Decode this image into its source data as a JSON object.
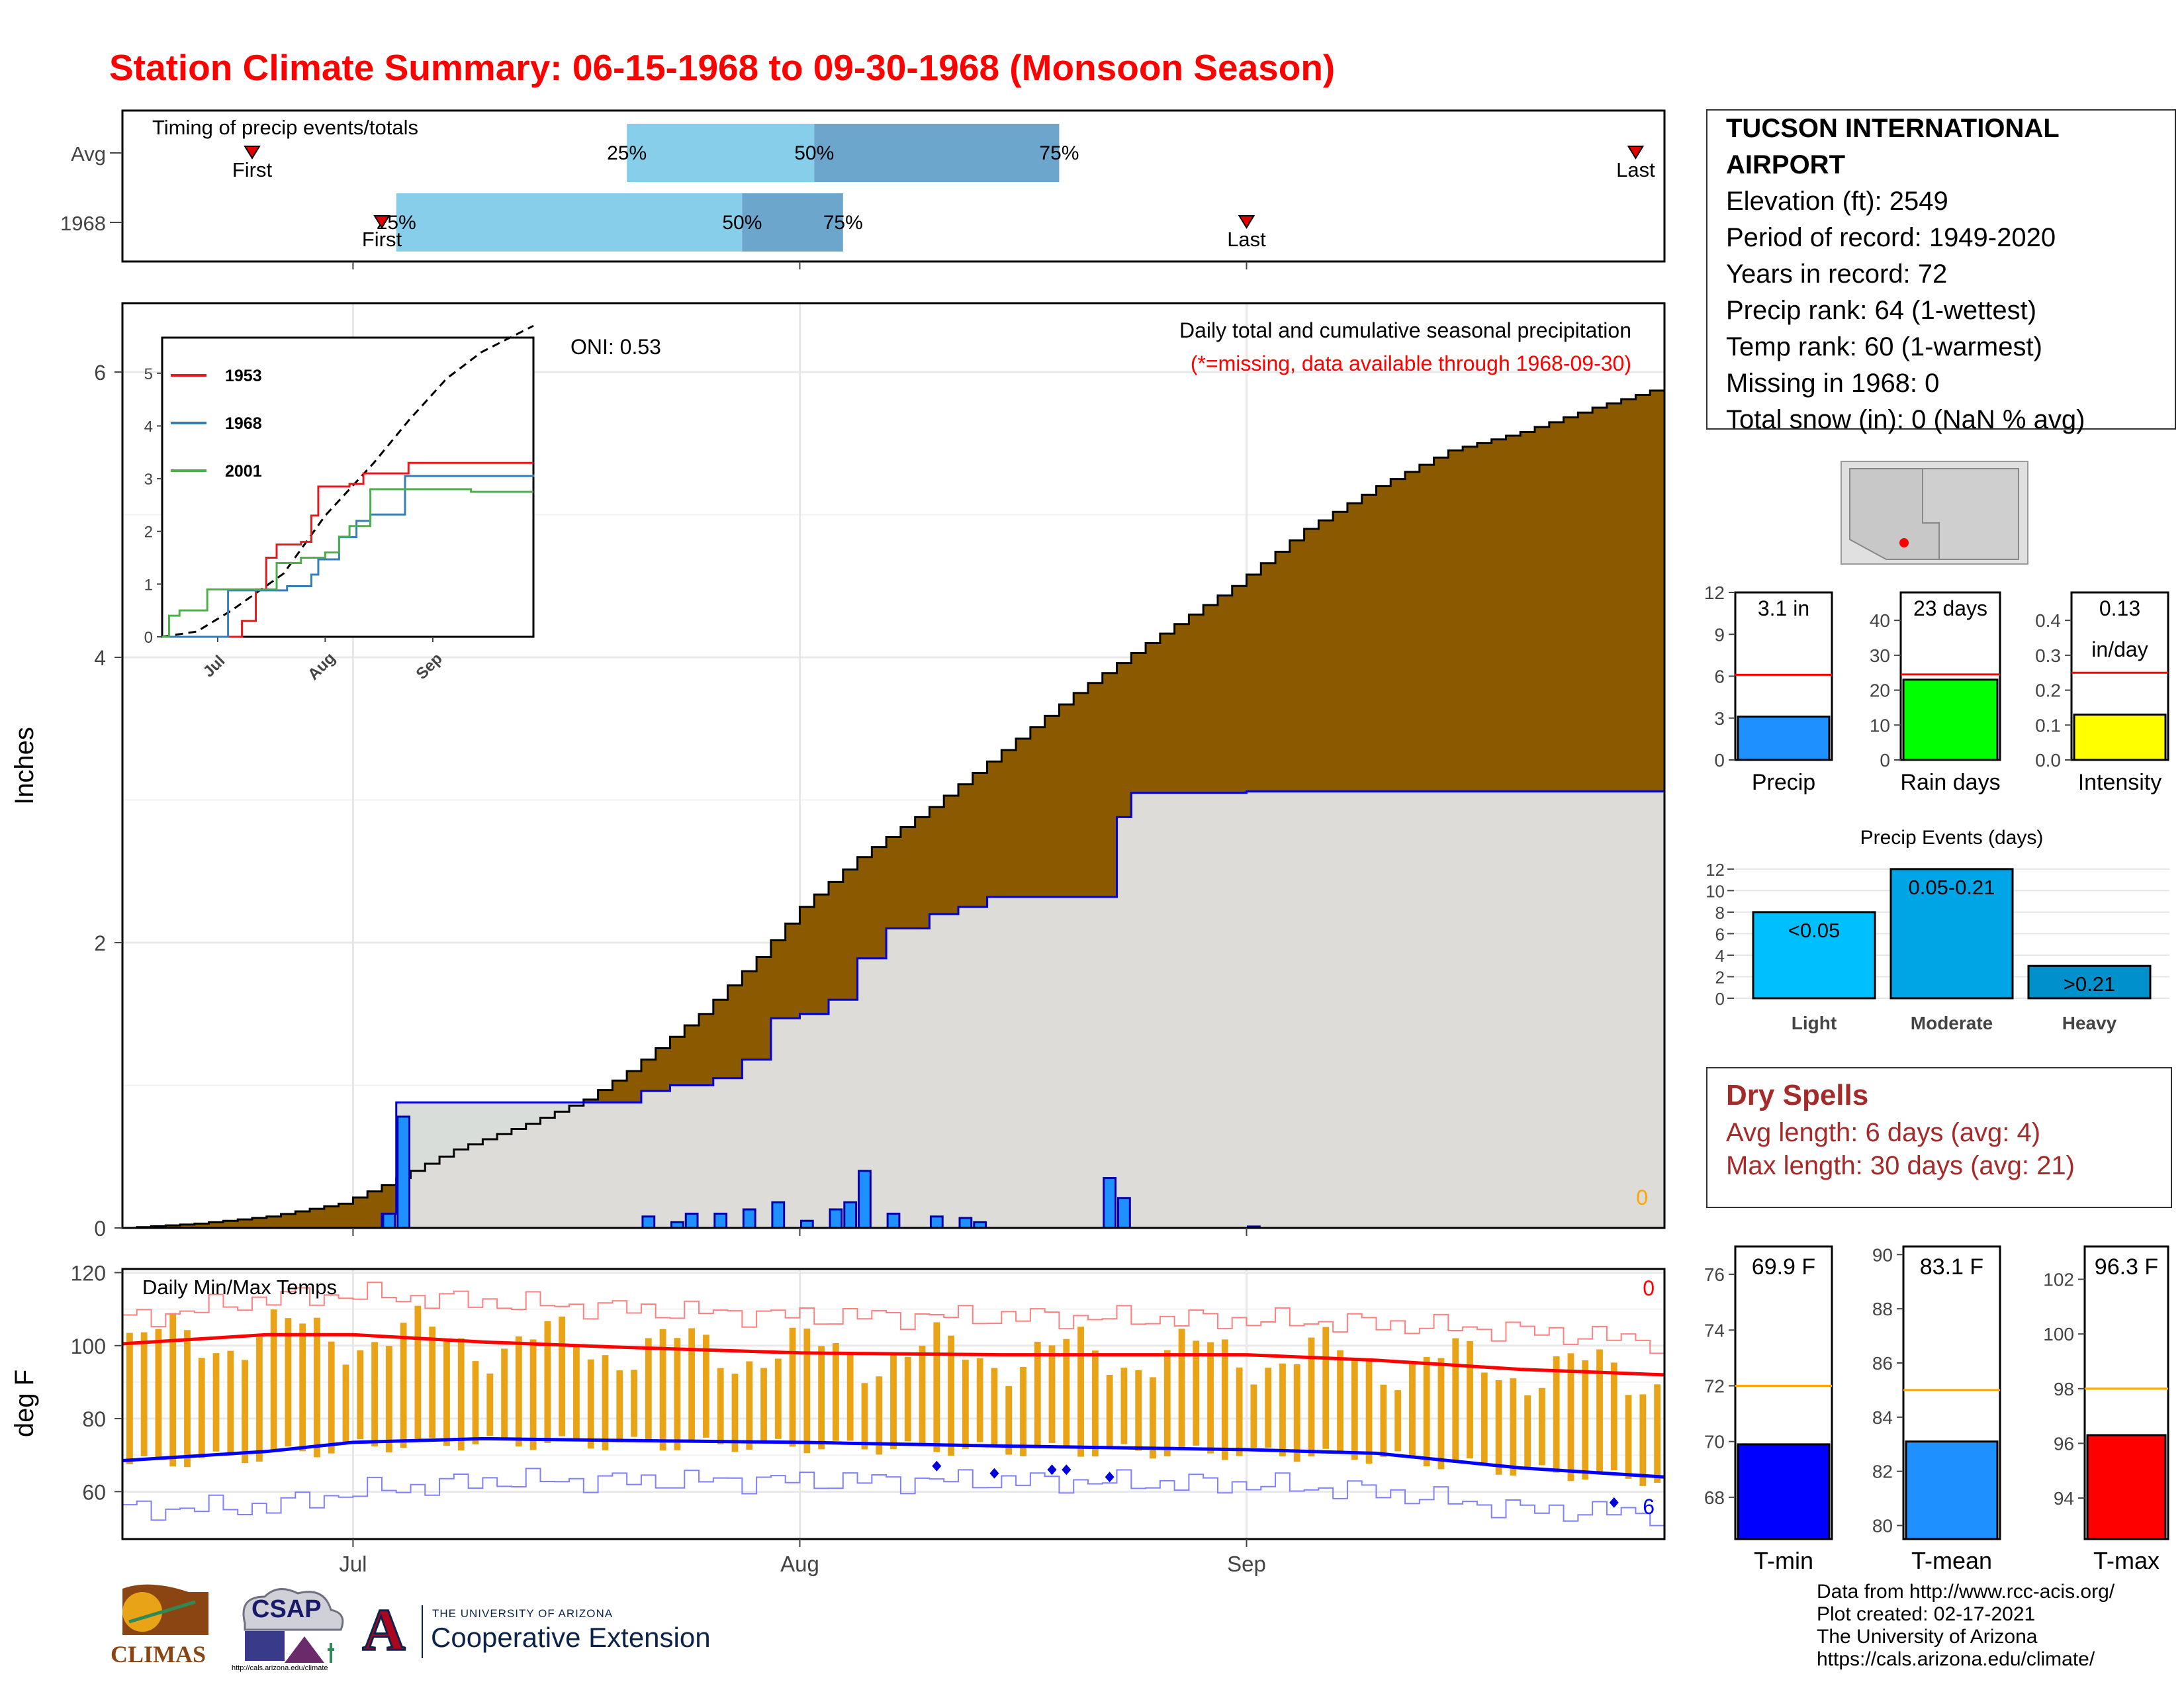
{
  "title": "Station Climate Summary: 06-15-1968 to 09-30-1968 (Monsoon Season)",
  "station": {
    "name": "TUCSON INTERNATIONAL AIRPORT",
    "lines": [
      "Elevation (ft): 2549",
      "Period of record: 1949-2020",
      "Years in record: 72",
      "Precip rank: 64 (1-wettest)",
      "Temp rank: 60 (1-warmest)",
      "Missing in 1968: 0",
      "Total snow (in): 0 (NaN % avg)"
    ]
  },
  "dry_spells": {
    "title": "Dry Spells",
    "avg": "Avg length: 6 days (avg: 4)",
    "max": "Max length: 30 days (avg: 21)"
  },
  "credits": [
    "Data from http://www.rcc-acis.org/",
    "Plot created: 02-17-2021",
    "The University of Arizona",
    "https://cals.arizona.edu/climate/"
  ],
  "logos": {
    "climas": "CLIMAS",
    "csap": "CSAP",
    "csap_url": "http://cals.arizona.edu/climate",
    "ua_top": "THE UNIVERSITY OF ARIZONA",
    "ua_bottom": "Cooperative Extension",
    "ua_letter": "A"
  },
  "colors": {
    "title": "#ff0000",
    "cumulative_avg": "#8b5a00",
    "cumulative_above": "#008000",
    "below_avg_fill": "#e0e0e0",
    "daily_bar": "#1e90ff",
    "timing_light": "#87ceeb",
    "timing_dark": "#6ca6cd",
    "tmax": "#ff0000",
    "tmin": "#0000ff",
    "range_bar": "#e8a317",
    "dry_spell": "#a52a2a"
  },
  "chart_data": [
    {
      "id": "timing",
      "type": "bar",
      "title": "Timing of precip events/totals",
      "rows": [
        {
          "label": "Avg",
          "first": "06-24",
          "q25": "07-20",
          "q50": "08-02",
          "q75": "08-19",
          "last": "09-28"
        },
        {
          "label": "1968",
          "first": "07-03",
          "q25": "07-04",
          "q50": "07-28",
          "q75": "08-04",
          "last": "09-01"
        }
      ],
      "quantile_labels": [
        "25%",
        "50%",
        "75%"
      ],
      "marker_labels": [
        "First",
        "Last"
      ]
    },
    {
      "id": "cumulative",
      "type": "area",
      "title": "Daily total and cumulative seasonal precipitation",
      "subtitle": "(*=missing, data available through 1968-09-30)",
      "ylabel": "Inches",
      "ylim": [
        0,
        6.5
      ],
      "yticks": [
        0,
        2,
        4,
        6
      ],
      "xticks": [
        "Jul",
        "Aug",
        "Sep"
      ],
      "oni": "ONI: 0.53",
      "missing_count": "0",
      "avg_cumulative": [
        [
          "06-15",
          0.0
        ],
        [
          "06-20",
          0.03
        ],
        [
          "06-25",
          0.08
        ],
        [
          "06-30",
          0.17
        ],
        [
          "07-03",
          0.3
        ],
        [
          "07-08",
          0.55
        ],
        [
          "07-13",
          0.73
        ],
        [
          "07-17",
          0.9
        ],
        [
          "07-20",
          1.1
        ],
        [
          "07-25",
          1.5
        ],
        [
          "07-29",
          1.9
        ],
        [
          "08-01",
          2.25
        ],
        [
          "08-05",
          2.6
        ],
        [
          "08-10",
          2.95
        ],
        [
          "08-15",
          3.35
        ],
        [
          "08-20",
          3.75
        ],
        [
          "08-25",
          4.1
        ],
        [
          "08-31",
          4.5
        ],
        [
          "09-05",
          4.9
        ],
        [
          "09-10",
          5.2
        ],
        [
          "09-15",
          5.45
        ],
        [
          "09-20",
          5.58
        ],
        [
          "09-25",
          5.75
        ],
        [
          "09-30",
          5.9
        ]
      ],
      "obs_cumulative": [
        [
          "06-15",
          0.0
        ],
        [
          "07-02",
          0.0
        ],
        [
          "07-03",
          0.1
        ],
        [
          "07-04",
          0.88
        ],
        [
          "07-20",
          0.88
        ],
        [
          "07-21",
          0.96
        ],
        [
          "07-23",
          1.0
        ],
        [
          "07-26",
          1.05
        ],
        [
          "07-28",
          1.18
        ],
        [
          "07-30",
          1.47
        ],
        [
          "08-01",
          1.5
        ],
        [
          "08-03",
          1.6
        ],
        [
          "08-05",
          1.89
        ],
        [
          "08-07",
          2.1
        ],
        [
          "08-10",
          2.2
        ],
        [
          "08-12",
          2.25
        ],
        [
          "08-14",
          2.32
        ],
        [
          "08-22",
          2.32
        ],
        [
          "08-23",
          2.88
        ],
        [
          "08-24",
          3.05
        ],
        [
          "09-01",
          3.06
        ],
        [
          "09-30",
          3.08
        ]
      ],
      "daily_bars": [
        [
          "07-03",
          0.1
        ],
        [
          "07-04",
          0.78
        ],
        [
          "07-21",
          0.08
        ],
        [
          "07-23",
          0.04
        ],
        [
          "07-24",
          0.1
        ],
        [
          "07-26",
          0.1
        ],
        [
          "07-28",
          0.13
        ],
        [
          "07-30",
          0.18
        ],
        [
          "08-01",
          0.05
        ],
        [
          "08-03",
          0.13
        ],
        [
          "08-04",
          0.18
        ],
        [
          "08-05",
          0.4
        ],
        [
          "08-07",
          0.1
        ],
        [
          "08-10",
          0.08
        ],
        [
          "08-12",
          0.07
        ],
        [
          "08-13",
          0.04
        ],
        [
          "08-22",
          0.35
        ],
        [
          "08-23",
          0.21
        ],
        [
          "09-01",
          0.01
        ]
      ]
    },
    {
      "id": "inset",
      "type": "line",
      "yticks": [
        0,
        1,
        2,
        3,
        4,
        5
      ],
      "ylim": [
        0,
        5.5
      ],
      "xticks": [
        "Jul",
        "Aug",
        "Sep"
      ],
      "series": [
        {
          "name": "1953",
          "color": "#e41a1c",
          "points": [
            [
              "06-15",
              0
            ],
            [
              "07-07",
              0
            ],
            [
              "07-08",
              0.3
            ],
            [
              "07-12",
              0.9
            ],
            [
              "07-15",
              1.5
            ],
            [
              "07-18",
              1.75
            ],
            [
              "07-25",
              1.8
            ],
            [
              "07-28",
              2.3
            ],
            [
              "07-30",
              2.85
            ],
            [
              "08-08",
              2.9
            ],
            [
              "08-12",
              3.1
            ],
            [
              "08-25",
              3.3
            ],
            [
              "09-30",
              3.3
            ]
          ]
        },
        {
          "name": "1968",
          "color": "#377eb8",
          "points": [
            [
              "06-15",
              0
            ],
            [
              "07-03",
              0
            ],
            [
              "07-04",
              0.88
            ],
            [
              "07-21",
              0.96
            ],
            [
              "07-28",
              1.18
            ],
            [
              "07-30",
              1.47
            ],
            [
              "08-05",
              1.89
            ],
            [
              "08-10",
              2.2
            ],
            [
              "08-14",
              2.32
            ],
            [
              "08-22",
              2.32
            ],
            [
              "08-24",
              3.05
            ],
            [
              "09-30",
              3.08
            ]
          ]
        },
        {
          "name": "2001",
          "color": "#4daf4a",
          "points": [
            [
              "06-15",
              0
            ],
            [
              "06-17",
              0.4
            ],
            [
              "06-20",
              0.5
            ],
            [
              "06-28",
              0.9
            ],
            [
              "07-18",
              1.4
            ],
            [
              "07-25",
              1.5
            ],
            [
              "08-01",
              1.6
            ],
            [
              "08-05",
              1.9
            ],
            [
              "08-08",
              2.1
            ],
            [
              "08-14",
              2.8
            ],
            [
              "09-10",
              2.8
            ],
            [
              "09-12",
              2.75
            ],
            [
              "09-30",
              2.75
            ]
          ]
        }
      ],
      "avg_dashed": [
        [
          "06-15",
          0
        ],
        [
          "06-25",
          0.1
        ],
        [
          "07-05",
          0.5
        ],
        [
          "07-20",
          1.2
        ],
        [
          "08-01",
          2.3
        ],
        [
          "08-15",
          3.3
        ],
        [
          "08-25",
          4.1
        ],
        [
          "09-05",
          4.9
        ],
        [
          "09-15",
          5.4
        ],
        [
          "09-30",
          5.9
        ]
      ]
    },
    {
      "id": "temps",
      "type": "line",
      "title": "Daily Min/Max Temps",
      "ylabel": "deg F",
      "ylim": [
        47,
        121
      ],
      "yticks": [
        60,
        80,
        100,
        120
      ],
      "xticks": [
        "Jul",
        "Aug",
        "Sep"
      ],
      "tmax_flag": "0",
      "tmin_flag": "6",
      "avg_tmax": [
        [
          "06-15",
          100.5
        ],
        [
          "06-25",
          103
        ],
        [
          "07-01",
          103
        ],
        [
          "07-10",
          101
        ],
        [
          "07-20",
          99.5
        ],
        [
          "08-01",
          98
        ],
        [
          "08-15",
          97.5
        ],
        [
          "09-01",
          97.5
        ],
        [
          "09-10",
          96
        ],
        [
          "09-20",
          93.5
        ],
        [
          "09-30",
          92
        ]
      ],
      "avg_tmin": [
        [
          "06-15",
          68.5
        ],
        [
          "06-25",
          71
        ],
        [
          "07-01",
          73.5
        ],
        [
          "07-10",
          74.5
        ],
        [
          "07-20",
          74
        ],
        [
          "08-01",
          73.5
        ],
        [
          "08-15",
          72.5
        ],
        [
          "09-01",
          71.5
        ],
        [
          "09-10",
          70.5
        ],
        [
          "09-20",
          66.5
        ],
        [
          "09-30",
          64
        ]
      ],
      "record_max": [
        [
          "06-15",
          107
        ],
        [
          "06-25",
          113
        ],
        [
          "07-01",
          114
        ],
        [
          "07-10",
          112
        ],
        [
          "07-20",
          110
        ],
        [
          "08-01",
          108
        ],
        [
          "08-15",
          108
        ],
        [
          "09-01",
          107
        ],
        [
          "09-10",
          106
        ],
        [
          "09-20",
          104
        ],
        [
          "09-30",
          101
        ]
      ],
      "record_min": [
        [
          "06-15",
          55
        ],
        [
          "06-25",
          56
        ],
        [
          "07-01",
          60
        ],
        [
          "07-10",
          63
        ],
        [
          "07-20",
          63
        ],
        [
          "08-01",
          63
        ],
        [
          "08-15",
          63
        ],
        [
          "09-01",
          62
        ],
        [
          "09-10",
          60
        ],
        [
          "09-20",
          55
        ],
        [
          "09-30",
          54
        ]
      ],
      "records_low_markers": [
        [
          "08-10",
          67
        ],
        [
          "08-14",
          65
        ],
        [
          "08-18",
          66
        ],
        [
          "08-19",
          66
        ],
        [
          "08-22",
          64
        ],
        [
          "09-26",
          57
        ]
      ]
    },
    {
      "id": "seasonal-totals",
      "type": "bar",
      "panels": [
        {
          "label": "Precip",
          "value": 3.1,
          "avg": 6.1,
          "ylim": [
            0,
            12
          ],
          "yticks": [
            0,
            3,
            6,
            9,
            12
          ],
          "text": "3.1 in",
          "color": "#1e90ff"
        },
        {
          "label": "Rain days",
          "value": 23,
          "avg": 24.5,
          "ylim": [
            0,
            48
          ],
          "yticks": [
            0,
            10,
            20,
            30,
            40
          ],
          "text": "23 days",
          "color": "#00ff00"
        },
        {
          "label": "Intensity",
          "value": 0.13,
          "avg": 0.25,
          "ylim": [
            0,
            0.48
          ],
          "yticks": [
            0.0,
            0.1,
            0.2,
            0.3,
            0.4
          ],
          "text": "0.13",
          "text2": "in/day",
          "color": "#ffff00"
        }
      ]
    },
    {
      "id": "precip-events",
      "type": "bar",
      "title": "Precip Events (days)",
      "categories": [
        "Light",
        "Moderate",
        "Heavy"
      ],
      "values": [
        8,
        12,
        3
      ],
      "bar_labels": [
        "<0.05",
        "0.05-0.21",
        ">0.21"
      ],
      "yticks": [
        0,
        2,
        4,
        6,
        8,
        10,
        12
      ],
      "ylim": [
        0,
        12.3
      ],
      "colors": [
        "#00bfff",
        "#00a5e6",
        "#0090cc"
      ]
    },
    {
      "id": "temp-summary",
      "type": "bar",
      "panels": [
        {
          "label": "T-min",
          "value": 69.9,
          "avg": 72,
          "ylim": [
            66.5,
            77
          ],
          "yticks": [
            68,
            70,
            72,
            74,
            76
          ],
          "text": "69.9 F",
          "color": "#0000ff"
        },
        {
          "label": "T-mean",
          "value": 83.1,
          "avg": 85,
          "ylim": [
            79.5,
            90.3
          ],
          "yticks": [
            80,
            82,
            84,
            86,
            88,
            90
          ],
          "text": "83.1 F",
          "color": "#1e90ff"
        },
        {
          "label": "T-max",
          "value": 96.3,
          "avg": 98,
          "ylim": [
            92.5,
            103.2
          ],
          "yticks": [
            94,
            96,
            98,
            100,
            102
          ],
          "text": "96.3 F",
          "color": "#ff0000"
        }
      ]
    }
  ]
}
